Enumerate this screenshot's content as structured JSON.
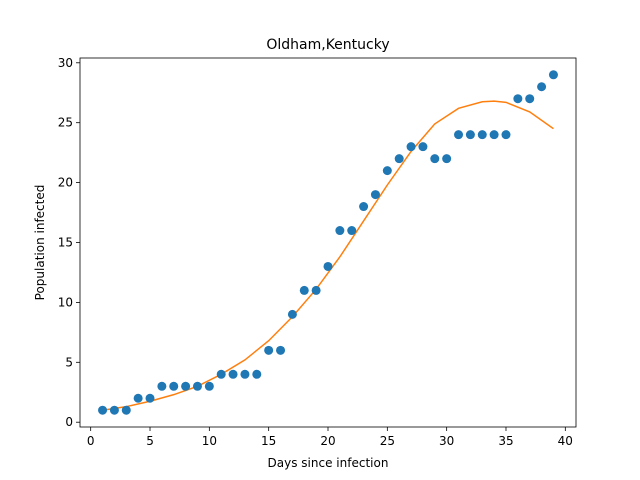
{
  "chart_data": {
    "type": "scatter",
    "title": "Oldham,Kentucky",
    "xlabel": "Days since infection",
    "ylabel": "Population infected",
    "xlim": [
      -0.9,
      40.9
    ],
    "ylim": [
      -0.4,
      30.4
    ],
    "xticks": [
      0,
      5,
      10,
      15,
      20,
      25,
      30,
      35,
      40
    ],
    "yticks": [
      0,
      5,
      10,
      15,
      20,
      25,
      30
    ],
    "grid": false,
    "series": [
      {
        "kind": "scatter",
        "color": "#1f77b4",
        "x": [
          1,
          2,
          3,
          4,
          5,
          6,
          7,
          8,
          9,
          10,
          11,
          12,
          13,
          14,
          15,
          16,
          17,
          18,
          19,
          20,
          21,
          22,
          23,
          24,
          25,
          26,
          27,
          28,
          29,
          30,
          31,
          32,
          33,
          34,
          35,
          36,
          37,
          38,
          39
        ],
        "y": [
          1,
          1,
          1,
          2,
          2,
          3,
          3,
          3,
          3,
          3,
          4,
          4,
          4,
          4,
          6,
          6,
          9,
          11,
          11,
          13,
          16,
          16,
          18,
          19,
          21,
          22,
          23,
          23,
          22,
          22,
          24,
          24,
          24,
          24,
          24,
          27,
          27,
          28,
          29
        ]
      },
      {
        "kind": "line",
        "color": "#ff7f0e",
        "x": [
          1,
          3,
          5,
          7,
          9,
          11,
          13,
          15,
          17,
          19,
          21,
          23,
          25,
          27,
          29,
          31,
          33,
          34,
          35,
          37,
          39
        ],
        "y": [
          1.0,
          1.3,
          1.75,
          2.3,
          3.0,
          4.0,
          5.2,
          6.8,
          8.8,
          11.1,
          13.8,
          16.8,
          19.8,
          22.6,
          24.9,
          26.2,
          26.75,
          26.8,
          26.7,
          25.9,
          24.5
        ]
      }
    ]
  }
}
